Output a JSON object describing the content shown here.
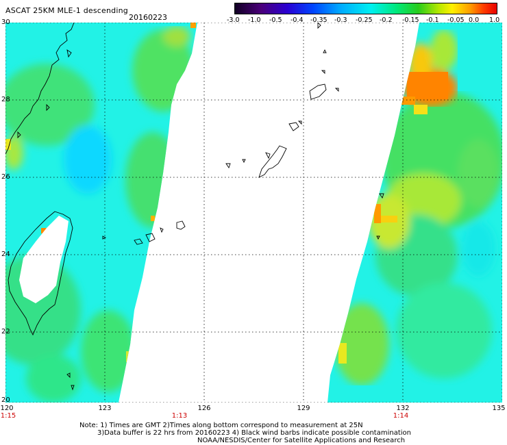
{
  "header": {
    "title": "ASCAT 25KM MLE-1 descending",
    "date": "20160223"
  },
  "colorbar": {
    "labels": [
      "-3.0",
      "-1.0",
      "-0.5",
      "-0.4",
      "-0.35",
      "-0.3",
      "-0.25",
      "-0.2",
      "-0.15",
      "-0.1",
      "-0.05",
      "0.0",
      "1.0"
    ],
    "colors": [
      "#120024",
      "#4a007a",
      "#2a00d2",
      "#0046ff",
      "#00a8ff",
      "#00f0f0",
      "#00e878",
      "#28cc1c",
      "#b8e800",
      "#fff000",
      "#ff9a00",
      "#ff3c00",
      "#e80000"
    ]
  },
  "map": {
    "lat_labels": [
      "30",
      "28",
      "26",
      "24",
      "22",
      "20"
    ],
    "lon_labels": [
      "120",
      "123",
      "126",
      "129",
      "132",
      "135"
    ],
    "time_labels": [
      "1:15",
      "1:13",
      "1:14"
    ],
    "colors": {
      "ocean_cyan": "#22f2e6",
      "green": "#2fe06a",
      "lime": "#8fe83a",
      "yellow": "#f0f020",
      "orange": "#ff8a00",
      "coastline": "#000000",
      "grid": "#000000",
      "time_label": "#cc0000"
    }
  },
  "notes": {
    "line1": "Note: 1) Times are GMT 2)Times along bottom correspond to measurement at 25N",
    "line2": "3)Data buffer is 22 hrs from 20160223 4) Black wind barbs indicate possible contamination",
    "line3": "NOAA/NESDIS/Center for Satellite Applications and Research"
  }
}
